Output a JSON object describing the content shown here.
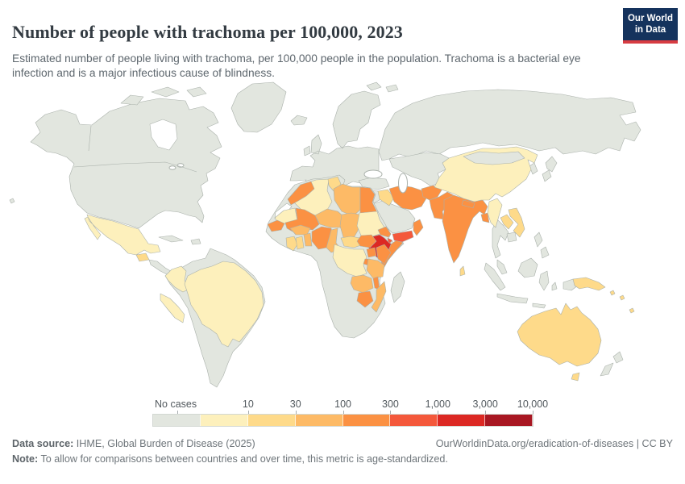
{
  "header": {
    "title": "Number of people with trachoma per 100,000, 2023",
    "subtitle": "Estimated number of people living with trachoma, per 100,000 people in the population. Trachoma is a bacterial eye infection and is a major infectious cause of blindness.",
    "logo": {
      "line1": "Our World",
      "line2": "in Data"
    }
  },
  "colors": {
    "logo_bg": "#15335d",
    "logo_accent": "#d73c42"
  },
  "legend": {
    "no_cases_label": "No cases",
    "tick_labels": [
      "10",
      "30",
      "100",
      "300",
      "1,000",
      "3,000",
      "10,000"
    ],
    "no_cases_color": "#e2e6df",
    "no_data_color": "#ffffff",
    "bin_colors": [
      "#fdf0bc",
      "#feda8a",
      "#fdba66",
      "#fb9143",
      "#f4583b",
      "#dc2823",
      "#a81722"
    ]
  },
  "map": {
    "ocean_color": "#ffffff",
    "default_land_color": "#e2e6df",
    "border_color": "#aab1ab",
    "countries": {
      "mexico": 1,
      "guatemala": 2,
      "colombia": 1,
      "peru": 1,
      "brazil": 1,
      "morocco": 4,
      "western-sahara": "nd",
      "algeria": 1,
      "tunisia": 2,
      "libya": 3,
      "egypt": 4,
      "mauritania": 1,
      "mali": 4,
      "niger": 3,
      "chad": 3,
      "sudan": 1,
      "eritrea": 4,
      "djibouti": 5,
      "ethiopia": 6,
      "somalia": 4,
      "senegal": 4,
      "burkina-faso": 3,
      "ivory-coast": 2,
      "ghana": 2,
      "benin-togo": 3,
      "nigeria": 4,
      "cameroon": 3,
      "central-african-republic": 2,
      "south-sudan": 4,
      "uganda": 4,
      "kenya": 4,
      "rwanda-burundi": 4,
      "tanzania": 3,
      "drc": 1,
      "zambia": 3,
      "malawi": 4,
      "mozambique": 3,
      "zimbabwe": 4,
      "iraq": 2,
      "iran": 4,
      "afghanistan": 4,
      "pakistan": 4,
      "india": 4,
      "nepal": 4,
      "bangladesh": 4,
      "sri-lanka": 2,
      "yemen": 5,
      "oman": 4,
      "china": 1,
      "myanmar": 1,
      "laos": 2,
      "vietnam": 2,
      "australia": 2,
      "papua-new-guinea": 2,
      "solomon-islands": 2
    }
  },
  "footer": {
    "source_label": "Data source:",
    "source_text": " IHME, Global Burden of Disease (2025)",
    "link_text": "OurWorldinData.org/eradication-of-diseases | CC BY",
    "note_label": "Note:",
    "note_text": " To allow for comparisons between countries and over time, this metric is age-standardized."
  },
  "chart_data": {
    "type": "heatmap",
    "variant": "world-choropleth",
    "title": "Number of people with trachoma per 100,000, 2023",
    "year": 2023,
    "unit": "people living with trachoma per 100,000 people",
    "legend_bins": [
      "No cases",
      "<10",
      "10-30",
      "30-100",
      "100-300",
      "300-1,000",
      "1,000-3,000",
      "3,000-10,000"
    ],
    "values_by_country": {
      "Ethiopia": "1,000-3,000",
      "Yemen": "300-1,000",
      "Djibouti": "300-1,000",
      "Morocco": "100-300",
      "Egypt": "100-300",
      "Mali": "100-300",
      "Senegal": "100-300",
      "Nigeria": "100-300",
      "Eritrea": "100-300",
      "South Sudan": "100-300",
      "Uganda": "100-300",
      "Kenya": "100-300",
      "Rwanda": "100-300",
      "Burundi": "100-300",
      "Malawi": "100-300",
      "Zimbabwe": "100-300",
      "Somalia": "100-300",
      "Oman": "100-300",
      "Iran": "100-300",
      "Afghanistan": "100-300",
      "Pakistan": "100-300",
      "India": "100-300",
      "Nepal": "100-300",
      "Bangladesh": "100-300",
      "Libya": "30-100",
      "Niger": "30-100",
      "Chad": "30-100",
      "Burkina Faso": "30-100",
      "Benin": "30-100",
      "Togo": "30-100",
      "Cameroon": "30-100",
      "Tanzania": "30-100",
      "Zambia": "30-100",
      "Mozambique": "30-100",
      "Guatemala": "10-30",
      "Tunisia": "10-30",
      "Cote d'Ivoire": "10-30",
      "Ghana": "10-30",
      "Central African Republic": "10-30",
      "Iraq": "10-30",
      "Laos": "10-30",
      "Vietnam": "10-30",
      "Sri Lanka": "10-30",
      "Australia": "10-30",
      "Papua New Guinea": "10-30",
      "Solomon Islands": "10-30",
      "Fiji": "10-30",
      "Mexico": "<10",
      "Colombia": "<10",
      "Peru": "<10",
      "Brazil": "<10",
      "Algeria": "<10",
      "Mauritania": "<10",
      "Sudan": "<10",
      "Democratic Republic of Congo": "<10",
      "China": "<10",
      "Myanmar": "<10",
      "United States": "No cases",
      "Canada": "No cases",
      "Greenland": "No cases",
      "Europe": "No cases",
      "Russia": "No cases",
      "Kazakhstan": "No cases",
      "Turkey": "No cases",
      "Saudi Arabia": "No cases",
      "Mongolia": "No cases",
      "Japan": "No cases",
      "South Korea": "No cases",
      "Thailand": "No cases",
      "Cambodia": "No cases",
      "Indonesia": "No cases",
      "Philippines": "No cases",
      "Malaysia": "No cases",
      "New Zealand": "No cases",
      "Venezuela": "No cases",
      "Ecuador": "No cases",
      "Bolivia": "No cases",
      "Paraguay": "No cases",
      "Argentina": "No cases",
      "Chile": "No cases",
      "Guinea": "No cases",
      "Sierra Leone": "No cases",
      "Liberia": "No cases",
      "Angola": "No cases",
      "South Africa": "No cases",
      "Namibia": "No cases",
      "Botswana": "No cases",
      "Madagascar": "No cases"
    },
    "no_data": [
      "Western Sahara"
    ]
  }
}
